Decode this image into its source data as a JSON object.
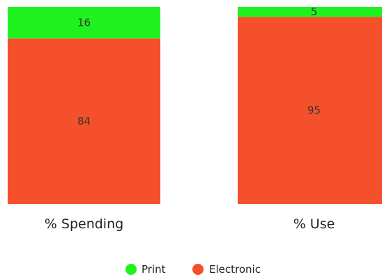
{
  "chart_data": {
    "type": "bar",
    "stacked": true,
    "categories": [
      "% Spending",
      "% Use"
    ],
    "series": [
      {
        "name": "Print",
        "values": [
          16,
          5
        ],
        "color": "#1ff21f"
      },
      {
        "name": "Electronic",
        "values": [
          84,
          95
        ],
        "color": "#f5502c"
      }
    ],
    "ylim": [
      0,
      100
    ],
    "grid": false,
    "legend_position": "bottom-center",
    "legend_marker": "circle"
  }
}
